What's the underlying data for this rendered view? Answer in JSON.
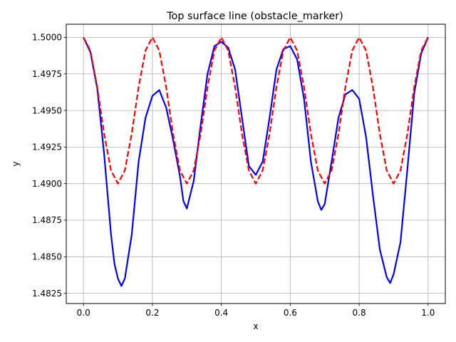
{
  "chart_data": {
    "type": "line",
    "title": "Top surface line (obstacle_marker)",
    "xlabel": "x",
    "ylabel": "y",
    "xlim": [
      -0.05,
      1.05
    ],
    "ylim": [
      1.4818,
      1.5009
    ],
    "xticks": [
      0.0,
      0.2,
      0.4,
      0.6,
      0.8,
      1.0
    ],
    "xtick_labels": [
      "0.0",
      "0.2",
      "0.4",
      "0.6",
      "0.8",
      "1.0"
    ],
    "yticks": [
      1.4825,
      1.485,
      1.4875,
      1.49,
      1.4925,
      1.495,
      1.4975,
      1.5
    ],
    "ytick_labels": [
      "1.4825",
      "1.4850",
      "1.4875",
      "1.4900",
      "1.4925",
      "1.4950",
      "1.4975",
      "1.5000"
    ],
    "grid": true,
    "series": [
      {
        "style": "solid",
        "color": "#0000ff",
        "x": [
          0.0,
          0.02,
          0.04,
          0.06,
          0.08,
          0.09,
          0.1,
          0.11,
          0.12,
          0.14,
          0.16,
          0.18,
          0.2,
          0.22,
          0.24,
          0.26,
          0.28,
          0.29,
          0.3,
          0.32,
          0.34,
          0.36,
          0.38,
          0.4,
          0.42,
          0.44,
          0.46,
          0.48,
          0.5,
          0.52,
          0.54,
          0.56,
          0.58,
          0.6,
          0.62,
          0.64,
          0.66,
          0.68,
          0.69,
          0.7,
          0.72,
          0.74,
          0.76,
          0.78,
          0.8,
          0.82,
          0.84,
          0.86,
          0.88,
          0.89,
          0.9,
          0.92,
          0.94,
          0.96,
          0.98,
          1.0
        ],
        "y": [
          1.5,
          1.499,
          1.4965,
          1.492,
          1.4865,
          1.4845,
          1.4835,
          1.483,
          1.4835,
          1.4865,
          1.4915,
          1.4945,
          1.496,
          1.4964,
          1.4952,
          1.493,
          1.4905,
          1.4888,
          1.4883,
          1.4902,
          1.494,
          1.4975,
          1.4994,
          1.4997,
          1.4993,
          1.4978,
          1.4945,
          1.4912,
          1.4906,
          1.4915,
          1.4945,
          1.4978,
          1.4992,
          1.4994,
          1.4985,
          1.4958,
          1.4915,
          1.4888,
          1.4882,
          1.4886,
          1.4915,
          1.4945,
          1.4961,
          1.4964,
          1.4958,
          1.4932,
          1.4892,
          1.4855,
          1.4836,
          1.4832,
          1.4838,
          1.486,
          1.491,
          1.4962,
          1.4989,
          1.5
        ]
      },
      {
        "style": "dashed",
        "color": "#ff0000",
        "x": [
          0.0,
          0.02,
          0.04,
          0.06,
          0.08,
          0.1,
          0.12,
          0.14,
          0.16,
          0.18,
          0.2,
          0.22,
          0.24,
          0.26,
          0.28,
          0.3,
          0.32,
          0.34,
          0.36,
          0.38,
          0.4,
          0.42,
          0.44,
          0.46,
          0.48,
          0.5,
          0.52,
          0.54,
          0.56,
          0.58,
          0.6,
          0.62,
          0.64,
          0.66,
          0.68,
          0.7,
          0.72,
          0.74,
          0.76,
          0.78,
          0.8,
          0.82,
          0.84,
          0.86,
          0.88,
          0.9,
          0.92,
          0.94,
          0.96,
          0.98,
          1.0
        ],
        "y": [
          1.5,
          1.4991,
          1.4966,
          1.4934,
          1.4909,
          1.49,
          1.4909,
          1.4934,
          1.4966,
          1.4991,
          1.5,
          1.4991,
          1.4966,
          1.4934,
          1.4909,
          1.49,
          1.4909,
          1.4934,
          1.4966,
          1.4991,
          1.5,
          1.4991,
          1.4966,
          1.4934,
          1.4909,
          1.49,
          1.4909,
          1.4934,
          1.4966,
          1.4991,
          1.5,
          1.4991,
          1.4966,
          1.4934,
          1.4909,
          1.49,
          1.4909,
          1.4934,
          1.4966,
          1.4991,
          1.5,
          1.4991,
          1.4966,
          1.4934,
          1.4909,
          1.49,
          1.4909,
          1.4934,
          1.4966,
          1.4991,
          1.5
        ]
      }
    ]
  }
}
